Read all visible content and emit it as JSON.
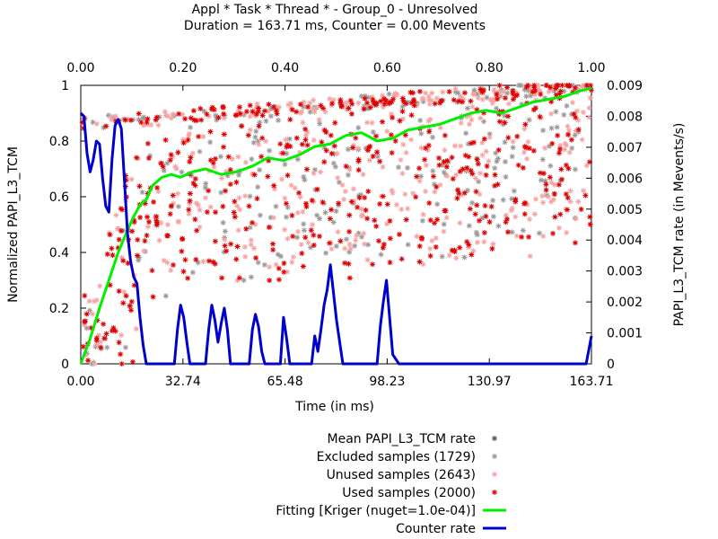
{
  "chart_data": {
    "type": "scatter",
    "title_line1": "Appl * Task * Thread * - Group_0 - Unresolved",
    "title_line2": "Duration = 163.71 ms, Counter = 0.00 Mevents",
    "xlabel": "Time (in ms)",
    "ylabel_left": "Normalized PAPI_L3_TCM",
    "ylabel_right": "PAPI_L3_TCM rate (in Mevents/s)",
    "x_bottom_ticks": [
      "0.00",
      "32.74",
      "65.48",
      "98.23",
      "130.97",
      "163.71"
    ],
    "x_top_ticks": [
      "0.00",
      "0.20",
      "0.40",
      "0.60",
      "0.80",
      "1.00"
    ],
    "y_left_ticks": [
      "0",
      "0.2",
      "0.4",
      "0.6",
      "0.8",
      "1"
    ],
    "y_right_ticks": [
      "0",
      "0.001",
      "0.002",
      "0.003",
      "0.004",
      "0.005",
      "0.006",
      "0.007",
      "0.008",
      "0.009"
    ],
    "xlim": [
      0,
      163.71
    ],
    "ylim_left": [
      0,
      1
    ],
    "ylim_right": [
      0,
      0.009
    ],
    "legend_position": "bottom",
    "legend": [
      {
        "label": "Mean PAPI_L3_TCM rate",
        "style": "star",
        "color": "#555555"
      },
      {
        "label": "Excluded samples (1729)",
        "style": "star",
        "color": "#999999"
      },
      {
        "label": "Unused samples (2643)",
        "style": "star",
        "color": "#f5a3a3"
      },
      {
        "label": "Used samples (2000)",
        "style": "star",
        "color": "#dd0000"
      },
      {
        "label": "Fitting [Kriger (nuget=1.0e-04)]",
        "style": "line",
        "color": "#00ee00"
      },
      {
        "label": "Counter rate",
        "style": "line",
        "color": "#0000cc"
      }
    ],
    "series": [
      {
        "name": "Fitting [Kriger (nuget=1.0e-04)]",
        "color": "#00ee00",
        "x": [
          0,
          3,
          6,
          9,
          12,
          15,
          17,
          19,
          21,
          23,
          26,
          29,
          32,
          36,
          40,
          45,
          50,
          55,
          60,
          65,
          70,
          75,
          80,
          85,
          90,
          95,
          100,
          105,
          110,
          115,
          120,
          125,
          130,
          135,
          140,
          145,
          150,
          155,
          160,
          163.71
        ],
        "y": [
          0.0,
          0.09,
          0.2,
          0.3,
          0.4,
          0.48,
          0.53,
          0.57,
          0.59,
          0.64,
          0.67,
          0.68,
          0.67,
          0.69,
          0.7,
          0.68,
          0.69,
          0.71,
          0.74,
          0.73,
          0.75,
          0.78,
          0.79,
          0.82,
          0.83,
          0.8,
          0.81,
          0.84,
          0.85,
          0.86,
          0.88,
          0.9,
          0.91,
          0.9,
          0.92,
          0.94,
          0.95,
          0.96,
          0.98,
          0.99
        ]
      },
      {
        "name": "Counter rate",
        "color": "#0000cc",
        "axis": "right",
        "x": [
          0,
          1,
          2,
          3,
          4,
          5,
          6,
          7,
          8,
          9,
          10,
          11,
          12,
          13,
          14,
          15,
          16,
          17,
          18,
          19,
          20,
          21,
          22,
          24,
          26,
          28,
          30,
          31,
          32,
          33,
          34,
          35,
          36,
          37,
          38,
          40,
          41,
          42,
          43,
          44,
          45,
          46,
          47,
          48,
          50,
          52,
          54,
          55,
          56,
          57,
          58,
          59,
          60,
          62,
          64,
          65,
          66,
          67,
          68,
          69,
          70,
          72,
          74,
          75,
          76,
          77,
          78,
          79,
          80,
          82,
          84,
          86,
          88,
          92,
          94,
          95,
          96,
          97,
          98,
          99,
          100,
          102,
          104,
          105,
          106,
          107,
          108,
          109,
          110,
          111,
          112,
          113,
          114,
          115,
          116,
          117,
          118,
          119,
          120,
          122,
          124,
          126,
          127,
          128,
          129,
          130,
          131,
          132,
          133,
          134,
          136,
          138,
          140,
          141,
          142,
          143,
          144,
          145,
          146,
          147,
          148,
          149,
          150,
          152,
          154,
          155,
          156,
          157,
          158,
          159,
          160,
          161,
          162,
          163.71
        ],
        "y": [
          0.0081,
          0.008,
          0.0068,
          0.0062,
          0.0066,
          0.0072,
          0.0071,
          0.006,
          0.0051,
          0.0049,
          0.0066,
          0.0077,
          0.0079,
          0.0076,
          0.0059,
          0.0042,
          0.0033,
          0.0028,
          0.0026,
          0.0015,
          0.0006,
          0.0,
          0.0,
          0.0,
          0.0,
          0.0,
          0.0,
          0.0011,
          0.0019,
          0.0015,
          0.0007,
          0.0,
          0.0,
          0.0,
          0.0,
          0.0,
          0.0011,
          0.0019,
          0.0014,
          0.0007,
          0.0013,
          0.0018,
          0.0011,
          0.0,
          0.0,
          0.0,
          0.0,
          0.0011,
          0.0016,
          0.0012,
          0.0004,
          0.0,
          0.0,
          0.0,
          0.0,
          0.0015,
          0.0008,
          0.0,
          0.0,
          0.0,
          0.0,
          0.0,
          0.0,
          0.0009,
          0.0004,
          0.0011,
          0.0019,
          0.0024,
          0.0032,
          0.0014,
          0.0,
          0.0,
          0.0,
          0.0,
          0.0,
          0.0,
          0.0012,
          0.002,
          0.0027,
          0.0015,
          0.0003,
          0.0,
          0.0,
          0.0,
          0.0,
          0.0,
          0.0,
          0.0,
          0.0,
          0.0,
          0.0,
          0.0,
          0.0,
          0.0,
          0.0,
          0.0,
          0.0,
          0.0,
          0.0,
          0.0,
          0.0,
          0.0,
          0.0,
          0.0,
          0.0,
          0.0,
          0.0,
          0.0,
          0.0,
          0.0,
          0.0,
          0.0,
          0.0,
          0.0,
          0.0,
          0.0,
          0.0,
          0.0,
          0.0,
          0.0,
          0.0,
          0.0,
          0.0,
          0.0,
          0.0,
          0.0,
          0.0,
          0.0,
          0.0,
          0.0,
          0.0,
          0.0,
          0.0,
          0.0009
        ]
      }
    ]
  }
}
